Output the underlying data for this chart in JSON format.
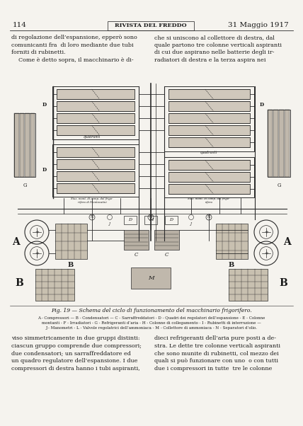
{
  "page_number": "114",
  "journal_title": "RIVISTA DEL FREDDO",
  "date": "31 Maggio 1917",
  "text_left": "di regolazione dell’espansione, epperò sono\ncomunicanti fra  di loro mediante due tubi\nforniti di rubinetti.\n    Come è detto sopra, il macchinario è di-",
  "text_right": "che si uniscono al collettore di destra, dal\nquale partono tre colonne verticali aspiranti\ndi cui due aspirano nelle batterie degli ir-\nradiatori di destra e la terza aspira nei",
  "fig_caption": "Fig. 19 — Schema del ciclo di funzionamento del macchinario frigorifero.",
  "fig_legend_1": "A - Compressori — B - Condensatori — C - Sarraffreddatori - D - Quadri dei regolatori dell’espansione - E - Colonne",
  "fig_legend_2": "montanti - F - Irradiatori - G - Refrigeranti d’aria - H - Colonne di collegamento - I - Rubinetti di interruzione —",
  "fig_legend_3": "J - Manometri - L - Valvole regolatrici dell’ammoniaca - M - Collettore di ammoniaca - N - Separatori d’olio.",
  "text_bottom_left": "viso simmetricamente in due gruppi distinti:\nciascun gruppo comprende due compressori;\ndue condensatori; un sarraffreddatore ed\nun quadro regulatore dell’espansione. I due\ncompressori di destra hanno i tubi aspiranti,",
  "text_bottom_right": "dieci refrigeranti dell’aria pure posti a de-\nstra. Le dette tre colonne verticali aspiranti\nche sono munite di rubinetti, col mezzo dei\nquali si può funzionare con uno  o con tutti\ndue i compressori in tutte  tre le colonne",
  "bg_color": "#f5f3ee",
  "text_color": "#1a1a1a",
  "line_color": "#2a2a2a",
  "diagram_fill": "#c8c0b0",
  "diagram_fill2": "#b8b0a0"
}
